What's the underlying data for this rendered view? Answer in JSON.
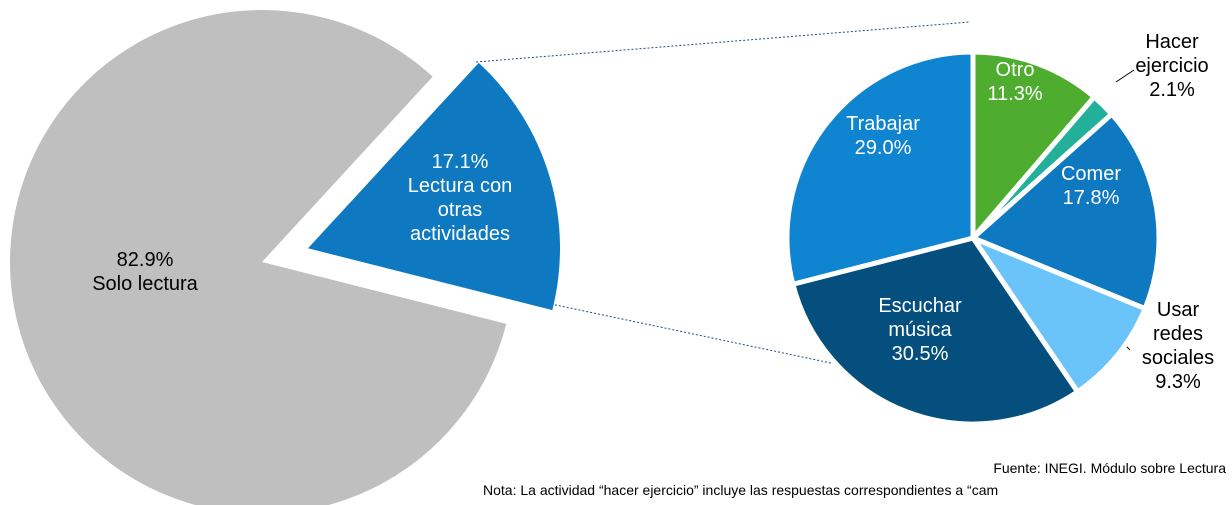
{
  "chart_data": [
    {
      "type": "pie",
      "categories": [
        "Solo lectura",
        "Lectura con otras actividades"
      ],
      "values": [
        82.9,
        17.1
      ],
      "value_labels": [
        "82.9%",
        "17.1%"
      ],
      "colors": [
        "#bfbfbf",
        "#0e79c0"
      ]
    },
    {
      "type": "pie",
      "categories": [
        "Otro",
        "Hacer ejercicio",
        "Comer",
        "Usar redes sociales",
        "Escuchar música",
        "Trabajar"
      ],
      "values": [
        11.3,
        2.1,
        17.8,
        9.3,
        30.5,
        29.0
      ],
      "value_labels": [
        "11.3%",
        "2.1%",
        "17.8%",
        "9.3%",
        "30.5%",
        "29.0%"
      ],
      "colors": [
        "#4ead2f",
        "#22b09a",
        "#0e79c0",
        "#6bc4f9",
        "#044f7e",
        "#0f84d0"
      ]
    }
  ],
  "footnotes": [
    "Fuente: INEGI. Módulo sobre Lectura",
    "Nota: La actividad “hacer ejercicio” incluye las respuestas correspondientes a “cam"
  ]
}
